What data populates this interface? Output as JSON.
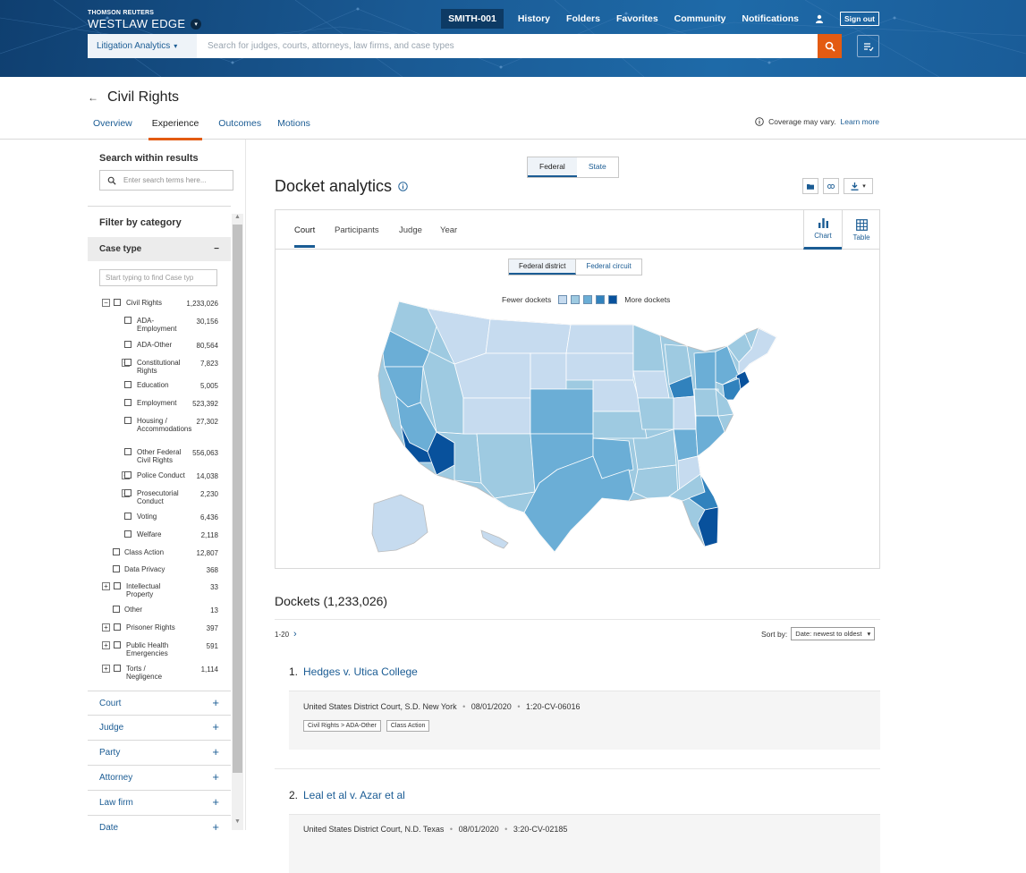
{
  "header": {
    "brand_top": "THOMSON REUTERS",
    "brand_name": "WESTLAW EDGE",
    "client_id": "SMITH-001",
    "nav": [
      "History",
      "Folders",
      "Favorites",
      "Community",
      "Notifications"
    ],
    "sign_out": "Sign out",
    "search_scope": "Litigation Analytics",
    "search_placeholder": "Search for judges, courts, attorneys, law firms, and case types"
  },
  "page": {
    "title": "Civil Rights",
    "tabs": [
      "Overview",
      "Experience",
      "Outcomes",
      "Motions"
    ],
    "active_tab": "Experience",
    "coverage_text": "Coverage may vary.",
    "coverage_link": "Learn more"
  },
  "sidebar": {
    "search_title": "Search within results",
    "search_placeholder": "Enter search terms here...",
    "filter_title": "Filter by category",
    "case_type_label": "Case type",
    "case_type_placeholder": "Start typing to find Case typ",
    "tree": [
      {
        "label": "Civil Rights",
        "count": "1,233,026",
        "level": 0,
        "expand": "−"
      },
      {
        "label": "ADA-Employment",
        "count": "30,156",
        "level": 1,
        "expand": ""
      },
      {
        "label": "ADA-Other",
        "count": "80,564",
        "level": 1,
        "expand": ""
      },
      {
        "label": "Constitutional Rights",
        "count": "7,823",
        "level": 1,
        "expand": "+"
      },
      {
        "label": "Education",
        "count": "5,005",
        "level": 1,
        "expand": ""
      },
      {
        "label": "Employment",
        "count": "523,392",
        "level": 1,
        "expand": ""
      },
      {
        "label": "Housing / Accommodations",
        "count": "27,302",
        "level": 1,
        "expand": ""
      },
      {
        "label": "Other Federal Civil Rights",
        "count": "556,063",
        "level": 1,
        "expand": ""
      },
      {
        "label": "Police Conduct",
        "count": "14,038",
        "level": 1,
        "expand": "+"
      },
      {
        "label": "Prosecutorial Conduct",
        "count": "2,230",
        "level": 1,
        "expand": "+"
      },
      {
        "label": "Voting",
        "count": "6,436",
        "level": 1,
        "expand": ""
      },
      {
        "label": "Welfare",
        "count": "2,118",
        "level": 1,
        "expand": ""
      },
      {
        "label": "Class Action",
        "count": "12,807",
        "level": 0,
        "expand": ""
      },
      {
        "label": "Data Privacy",
        "count": "368",
        "level": 0,
        "expand": ""
      },
      {
        "label": "Intellectual Property",
        "count": "33",
        "level": 0,
        "expand": "+"
      },
      {
        "label": "Other",
        "count": "13",
        "level": 0,
        "expand": ""
      },
      {
        "label": "Prisoner Rights",
        "count": "397",
        "level": 0,
        "expand": "+"
      },
      {
        "label": "Public Health Emergencies",
        "count": "591",
        "level": 0,
        "expand": "+"
      },
      {
        "label": "Torts / Negligence",
        "count": "1,114",
        "level": 0,
        "expand": "+"
      }
    ],
    "categories": [
      "Court",
      "Judge",
      "Party",
      "Attorney",
      "Law firm",
      "Date"
    ]
  },
  "main": {
    "jurisdiction_toggle": [
      "Federal",
      "State"
    ],
    "jurisdiction_selected": "Federal",
    "title": "Docket analytics",
    "panel_tabs": [
      "Court",
      "Participants",
      "Judge",
      "Year"
    ],
    "panel_active": "Court",
    "view_chart": "Chart",
    "view_table": "Table",
    "district_toggle": [
      "Federal district",
      "Federal circuit"
    ],
    "district_selected": "Federal district",
    "legend_low": "Fewer dockets",
    "legend_high": "More dockets",
    "legend_colors": [
      "#c6dbef",
      "#9ecae1",
      "#6baed6",
      "#3182bd",
      "#08519c"
    ],
    "dockets_heading": "Dockets (1,233,026)",
    "pager": "1-20",
    "sort_label": "Sort by:",
    "sort_value": "Date: newest to oldest",
    "results": [
      {
        "num": "1.",
        "title": "Hedges v. Utica College",
        "court": "United States District Court, S.D. New York",
        "date": "08/01/2020",
        "docket": "1:20-CV-06016",
        "badges": [
          "Civil Rights > ADA-Other",
          "Class Action"
        ]
      },
      {
        "num": "2.",
        "title": "Leal et al v. Azar et al",
        "court": "United States District Court, N.D. Texas",
        "date": "08/01/2020",
        "docket": "3:20-CV-02185",
        "badges": []
      }
    ]
  },
  "colors": {
    "brand_blue": "#1b5c94",
    "accent_orange": "#e35b12"
  }
}
